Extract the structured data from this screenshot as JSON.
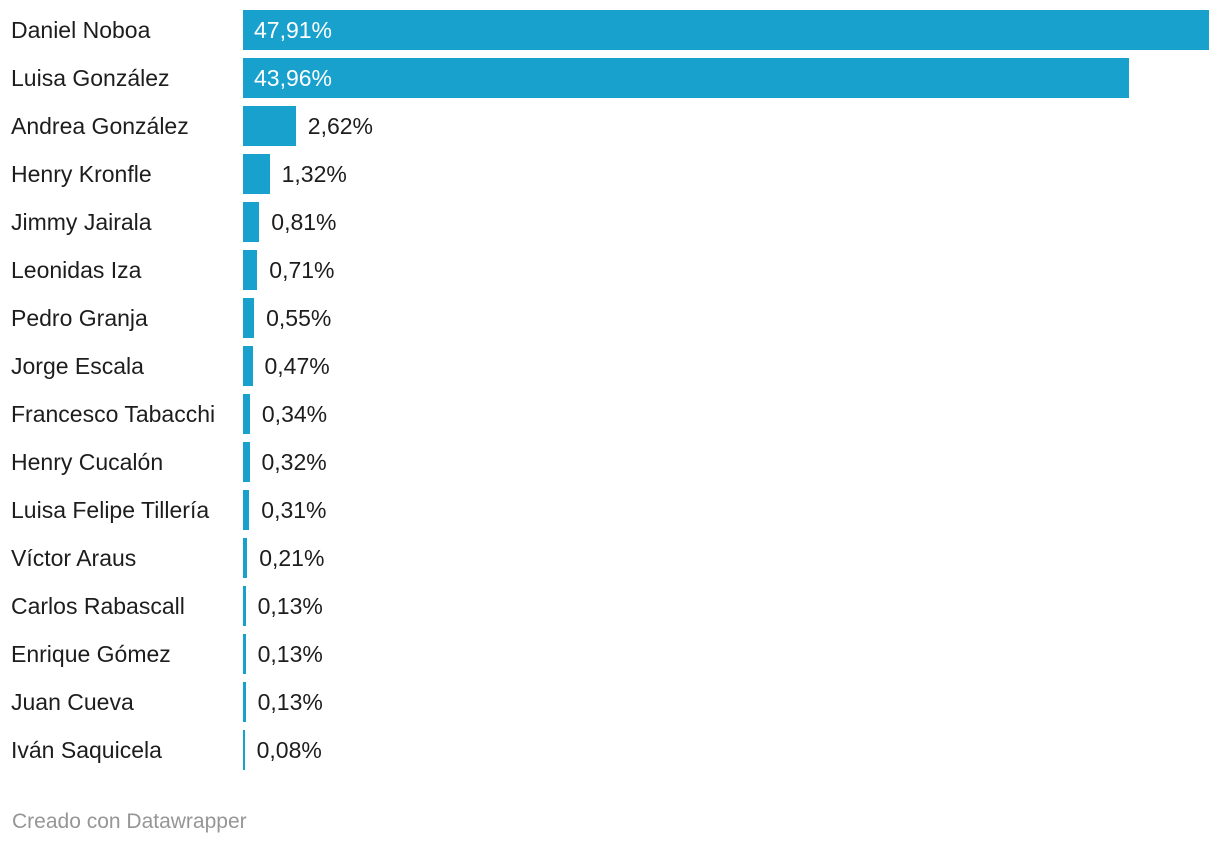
{
  "chart_data": {
    "type": "bar",
    "orientation": "horizontal",
    "title": "",
    "xlabel": "",
    "ylabel": "",
    "xlim": [
      0,
      47.91
    ],
    "grid": false,
    "legend": false,
    "bar_color": "#18a1cd",
    "categories": [
      "Daniel Noboa",
      "Luisa González",
      "Andrea González",
      "Henry Kronfle",
      "Jimmy Jairala",
      "Leonidas Iza",
      "Pedro Granja",
      "Jorge Escala",
      "Francesco Tabacchi",
      "Henry Cucalón",
      "Luisa Felipe Tillería",
      "Víctor Araus",
      "Carlos Rabascall",
      "Enrique Gómez",
      "Juan Cueva",
      "Iván Saquicela"
    ],
    "values": [
      47.91,
      43.96,
      2.62,
      1.32,
      0.81,
      0.71,
      0.55,
      0.47,
      0.34,
      0.32,
      0.31,
      0.21,
      0.13,
      0.13,
      0.13,
      0.08
    ],
    "value_labels": [
      "47,91%",
      "43,96%",
      "2,62%",
      "1,32%",
      "0,81%",
      "0,71%",
      "0,55%",
      "0,47%",
      "0,34%",
      "0,32%",
      "0,31%",
      "0,21%",
      "0,13%",
      "0,13%",
      "0,13%",
      "0,08%"
    ]
  },
  "footer": {
    "attribution": "Creado con Datawrapper"
  },
  "colors": {
    "background": "#ffffff",
    "bar": "#18a1cd",
    "category_text": "#1d1d1d",
    "value_text_outside": "#1d1d1d",
    "value_text_inside": "#ffffff",
    "footer_text": "#969696"
  }
}
